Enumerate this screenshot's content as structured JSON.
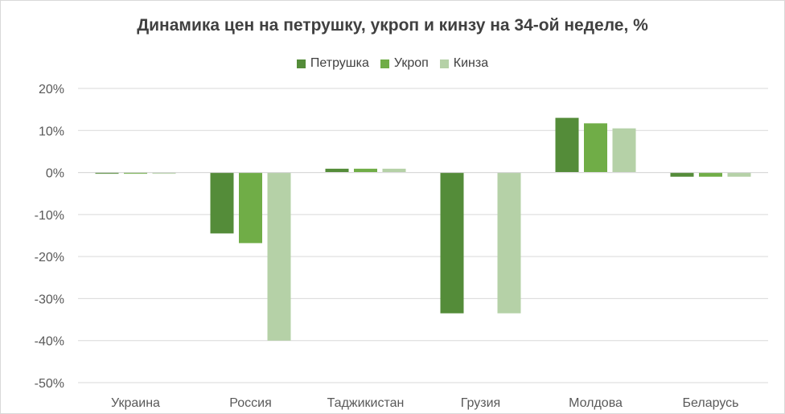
{
  "chart_data": {
    "type": "bar",
    "title": "Динамика цен на петрушку, укроп и кинзу на 34-ой неделе, %",
    "categories": [
      "Украина",
      "Россия",
      "Таджикистан",
      "Грузия",
      "Молдова",
      "Беларусь"
    ],
    "series": [
      {
        "name": "Петрушка",
        "color": "#548c39",
        "values": [
          -0.3,
          -14.5,
          0.9,
          -33.5,
          13.0,
          -1.0
        ]
      },
      {
        "name": "Укроп",
        "color": "#70ad47",
        "values": [
          -0.3,
          -16.8,
          0.9,
          0,
          11.7,
          -1.0
        ]
      },
      {
        "name": "Кинза",
        "color": "#b5d1a7",
        "values": [
          -0.3,
          -40.0,
          0.9,
          -33.5,
          10.5,
          -1.0
        ]
      }
    ],
    "ylim": [
      -50,
      20
    ],
    "yticks": [
      20,
      10,
      0,
      -10,
      -20,
      -30,
      -40,
      -50
    ],
    "ytick_labels": [
      "20%",
      "10%",
      "0%",
      "-10%",
      "-20%",
      "-30%",
      "-40%",
      "-50%"
    ],
    "grid": true,
    "legend_position": "top"
  }
}
